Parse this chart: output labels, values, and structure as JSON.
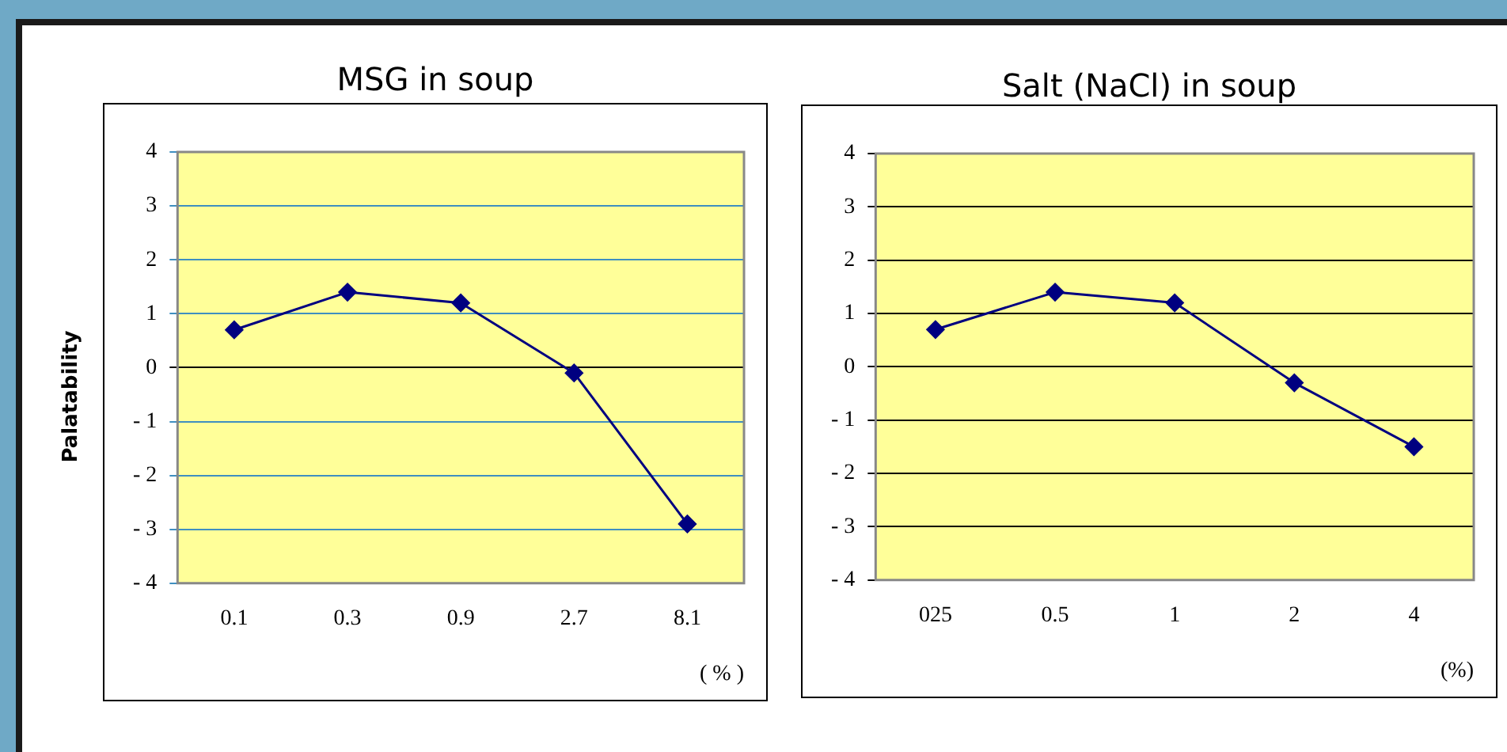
{
  "chart_data": [
    {
      "type": "line",
      "title": "MSG in soup",
      "xlabel": "( % )",
      "ylabel": "Palatability",
      "categories": [
        "0.1",
        "0.3",
        "0.9",
        "2.7",
        "8.1"
      ],
      "series": [
        {
          "color": "#000080",
          "values": [
            0.7,
            1.4,
            1.2,
            -0.1,
            -2.9
          ]
        }
      ],
      "ylim": [
        -4,
        4
      ],
      "yticks": [
        {
          "value": -4,
          "label": "- 4"
        },
        {
          "value": -3,
          "label": "- 3"
        },
        {
          "value": -2,
          "label": "- 2"
        },
        {
          "value": -1,
          "label": "- 1"
        },
        0,
        1,
        2,
        3,
        4
      ],
      "grid": "y",
      "marker": "diamond"
    },
    {
      "type": "line",
      "title": "Salt (NaCl) in soup",
      "xlabel": "(%)",
      "categories": [
        "025",
        "0.5",
        "1",
        "2",
        "4"
      ],
      "series": [
        {
          "color": "#000080",
          "values": [
            0.7,
            1.4,
            1.2,
            -0.3,
            -1.5
          ]
        }
      ],
      "ylim": [
        -4,
        4
      ],
      "yticks": [
        {
          "value": -4,
          "label": "- 4"
        },
        {
          "value": -3,
          "label": "- 3"
        },
        {
          "value": -2,
          "label": "- 2"
        },
        {
          "value": -1,
          "label": "- 1"
        },
        0,
        1,
        2,
        3,
        4
      ],
      "grid": "y",
      "marker": "diamond"
    }
  ]
}
